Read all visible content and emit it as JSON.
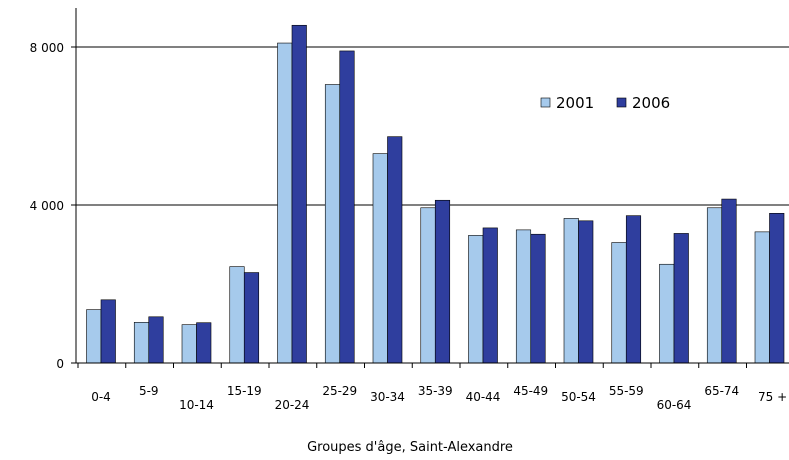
{
  "chart_data": {
    "type": "bar",
    "title": "",
    "xlabel": "Groupes d'âge, Saint-Alexandre",
    "ylabel": "",
    "categories": [
      "0-4",
      "5-9",
      "10-14",
      "15-19",
      "20-24",
      "25-29",
      "30-34",
      "35-39",
      "40-44",
      "45-49",
      "50-54",
      "55-59",
      "60-64",
      "65-74",
      "75 +"
    ],
    "series": [
      {
        "name": "2001",
        "color": "#a6caec",
        "values": [
          1350,
          1030,
          970,
          2440,
          8100,
          7050,
          5300,
          3930,
          3230,
          3370,
          3660,
          3050,
          2500,
          3930,
          3320
        ]
      },
      {
        "name": "2006",
        "color": "#2f3e9e",
        "values": [
          1600,
          1170,
          1020,
          2290,
          8550,
          7900,
          5730,
          4120,
          3420,
          3260,
          3600,
          3730,
          3280,
          4150,
          3790
        ]
      }
    ],
    "ylim": [
      0,
      9000
    ],
    "yticks": [
      0,
      4000,
      8000
    ],
    "ytick_labels": [
      "0",
      "4 000",
      "8 000"
    ],
    "grid": true,
    "legend": "top-right"
  }
}
